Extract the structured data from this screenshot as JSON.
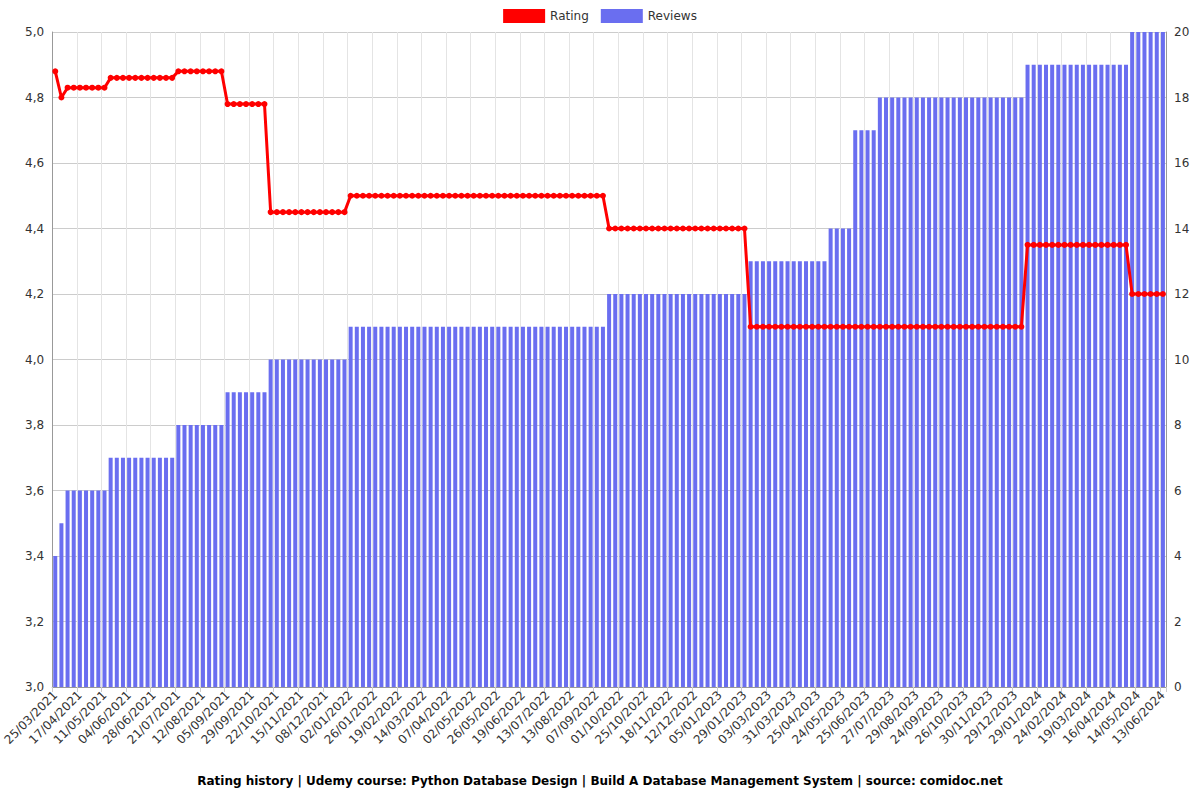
{
  "chart_data": {
    "type": "combo",
    "title": "Rating history | Udemy course: Python Database Design | Build A Database Management System | source: comidoc.net",
    "categories": [
      "25/03/2021",
      null,
      null,
      null,
      "17/04/2021",
      null,
      null,
      null,
      "11/05/2021",
      null,
      null,
      null,
      "04/06/2021",
      null,
      null,
      null,
      "28/06/2021",
      null,
      null,
      null,
      "21/07/2021",
      null,
      null,
      null,
      "12/08/2021",
      null,
      null,
      null,
      "05/09/2021",
      null,
      null,
      null,
      "29/09/2021",
      null,
      null,
      null,
      "22/10/2021",
      null,
      null,
      null,
      "15/11/2021",
      null,
      null,
      null,
      "08/12/2021",
      null,
      null,
      null,
      "02/01/2022",
      null,
      null,
      null,
      "26/01/2022",
      null,
      null,
      null,
      "19/02/2022",
      null,
      null,
      null,
      "14/03/2022",
      null,
      null,
      null,
      "07/04/2022",
      null,
      null,
      null,
      "02/05/2022",
      null,
      null,
      null,
      "26/05/2022",
      null,
      null,
      null,
      "19/06/2022",
      null,
      null,
      null,
      "13/07/2022",
      null,
      null,
      null,
      "13/08/2022",
      null,
      null,
      null,
      "07/09/2022",
      null,
      null,
      null,
      "01/10/2022",
      null,
      null,
      null,
      "25/10/2022",
      null,
      null,
      null,
      "18/11/2022",
      null,
      null,
      null,
      "12/12/2022",
      null,
      null,
      null,
      "05/01/2023",
      null,
      null,
      null,
      "29/01/2023",
      null,
      null,
      null,
      "03/03/2023",
      null,
      null,
      null,
      "31/03/2023",
      null,
      null,
      null,
      "25/04/2023",
      null,
      null,
      null,
      "24/05/2023",
      null,
      null,
      null,
      "25/06/2023",
      null,
      null,
      null,
      "27/07/2023",
      null,
      null,
      null,
      "29/08/2023",
      null,
      null,
      null,
      "24/09/2023",
      null,
      null,
      null,
      "26/10/2023",
      null,
      null,
      null,
      "30/11/2023",
      null,
      null,
      null,
      "29/12/2023",
      null,
      null,
      null,
      "29/01/2024",
      null,
      null,
      null,
      "24/02/2024",
      null,
      null,
      null,
      "19/03/2024",
      null,
      null,
      null,
      "16/04/2024",
      null,
      null,
      null,
      "14/05/2024",
      null,
      null,
      null,
      "13/06/2024"
    ],
    "series": [
      {
        "name": "Rating",
        "type": "line",
        "color": "#ff0000",
        "marker": "circle",
        "axis": "y",
        "values": [
          4.88,
          4.8,
          4.83,
          4.83,
          4.83,
          4.83,
          4.83,
          4.83,
          4.83,
          4.86,
          4.86,
          4.86,
          4.86,
          4.86,
          4.86,
          4.86,
          4.86,
          4.86,
          4.86,
          4.86,
          4.88,
          4.88,
          4.88,
          4.88,
          4.88,
          4.88,
          4.88,
          4.88,
          4.78,
          4.78,
          4.78,
          4.78,
          4.78,
          4.78,
          4.78,
          4.45,
          4.45,
          4.45,
          4.45,
          4.45,
          4.45,
          4.45,
          4.45,
          4.45,
          4.45,
          4.45,
          4.45,
          4.45,
          4.5,
          4.5,
          4.5,
          4.5,
          4.5,
          4.5,
          4.5,
          4.5,
          4.5,
          4.5,
          4.5,
          4.5,
          4.5,
          4.5,
          4.5,
          4.5,
          4.5,
          4.5,
          4.5,
          4.5,
          4.5,
          4.5,
          4.5,
          4.5,
          4.5,
          4.5,
          4.5,
          4.5,
          4.5,
          4.5,
          4.5,
          4.5,
          4.5,
          4.5,
          4.5,
          4.5,
          4.5,
          4.5,
          4.5,
          4.5,
          4.5,
          4.5,
          4.4,
          4.4,
          4.4,
          4.4,
          4.4,
          4.4,
          4.4,
          4.4,
          4.4,
          4.4,
          4.4,
          4.4,
          4.4,
          4.4,
          4.4,
          4.4,
          4.4,
          4.4,
          4.4,
          4.4,
          4.4,
          4.4,
          4.4,
          4.1,
          4.1,
          4.1,
          4.1,
          4.1,
          4.1,
          4.1,
          4.1,
          4.1,
          4.1,
          4.1,
          4.1,
          4.1,
          4.1,
          4.1,
          4.1,
          4.1,
          4.1,
          4.1,
          4.1,
          4.1,
          4.1,
          4.1,
          4.1,
          4.1,
          4.1,
          4.1,
          4.1,
          4.1,
          4.1,
          4.1,
          4.1,
          4.1,
          4.1,
          4.1,
          4.1,
          4.1,
          4.1,
          4.1,
          4.1,
          4.1,
          4.1,
          4.1,
          4.1,
          4.1,
          4.35,
          4.35,
          4.35,
          4.35,
          4.35,
          4.35,
          4.35,
          4.35,
          4.35,
          4.35,
          4.35,
          4.35,
          4.35,
          4.35,
          4.35,
          4.35,
          4.35,
          4.2,
          4.2,
          4.2,
          4.2,
          4.2,
          4.2
        ]
      },
      {
        "name": "Reviews",
        "type": "bar",
        "color": "#6a6ef0",
        "axis": "y2",
        "values": [
          4,
          5,
          6,
          6,
          6,
          6,
          6,
          6,
          6,
          7,
          7,
          7,
          7,
          7,
          7,
          7,
          7,
          7,
          7,
          7,
          8,
          8,
          8,
          8,
          8,
          8,
          8,
          8,
          9,
          9,
          9,
          9,
          9,
          9,
          9,
          10,
          10,
          10,
          10,
          10,
          10,
          10,
          10,
          10,
          10,
          10,
          10,
          10,
          11,
          11,
          11,
          11,
          11,
          11,
          11,
          11,
          11,
          11,
          11,
          11,
          11,
          11,
          11,
          11,
          11,
          11,
          11,
          11,
          11,
          11,
          11,
          11,
          11,
          11,
          11,
          11,
          11,
          11,
          11,
          11,
          11,
          11,
          11,
          11,
          11,
          11,
          11,
          11,
          11,
          11,
          12,
          12,
          12,
          12,
          12,
          12,
          12,
          12,
          12,
          12,
          12,
          12,
          12,
          12,
          12,
          12,
          12,
          12,
          12,
          12,
          12,
          12,
          12,
          13,
          13,
          13,
          13,
          13,
          13,
          13,
          13,
          13,
          13,
          13,
          13,
          13,
          14,
          14,
          14,
          14,
          17,
          17,
          17,
          17,
          18,
          18,
          18,
          18,
          18,
          18,
          18,
          18,
          18,
          18,
          18,
          18,
          18,
          18,
          18,
          18,
          18,
          18,
          18,
          18,
          18,
          18,
          18,
          18,
          19,
          19,
          19,
          19,
          19,
          19,
          19,
          19,
          19,
          19,
          19,
          19,
          19,
          19,
          19,
          19,
          19,
          20,
          20,
          20,
          20,
          20,
          20
        ]
      }
    ],
    "ylim": [
      3,
      5
    ],
    "yticks": [
      {
        "value": 3,
        "label": "3,0"
      },
      {
        "value": 3.2,
        "label": "3,2"
      },
      {
        "value": 3.4,
        "label": "3,4"
      },
      {
        "value": 3.6,
        "label": "3,6"
      },
      {
        "value": 3.8,
        "label": "3,8"
      },
      {
        "value": 4,
        "label": "4,0"
      },
      {
        "value": 4.2,
        "label": "4,2"
      },
      {
        "value": 4.4,
        "label": "4,4"
      },
      {
        "value": 4.6,
        "label": "4,6"
      },
      {
        "value": 4.8,
        "label": "4,8"
      },
      {
        "value": 5,
        "label": "5,0"
      }
    ],
    "y2lim": [
      0,
      20
    ],
    "y2ticks": [
      0,
      2,
      4,
      6,
      8,
      10,
      12,
      14,
      16,
      18,
      20
    ],
    "grid": true,
    "legend": "top"
  }
}
